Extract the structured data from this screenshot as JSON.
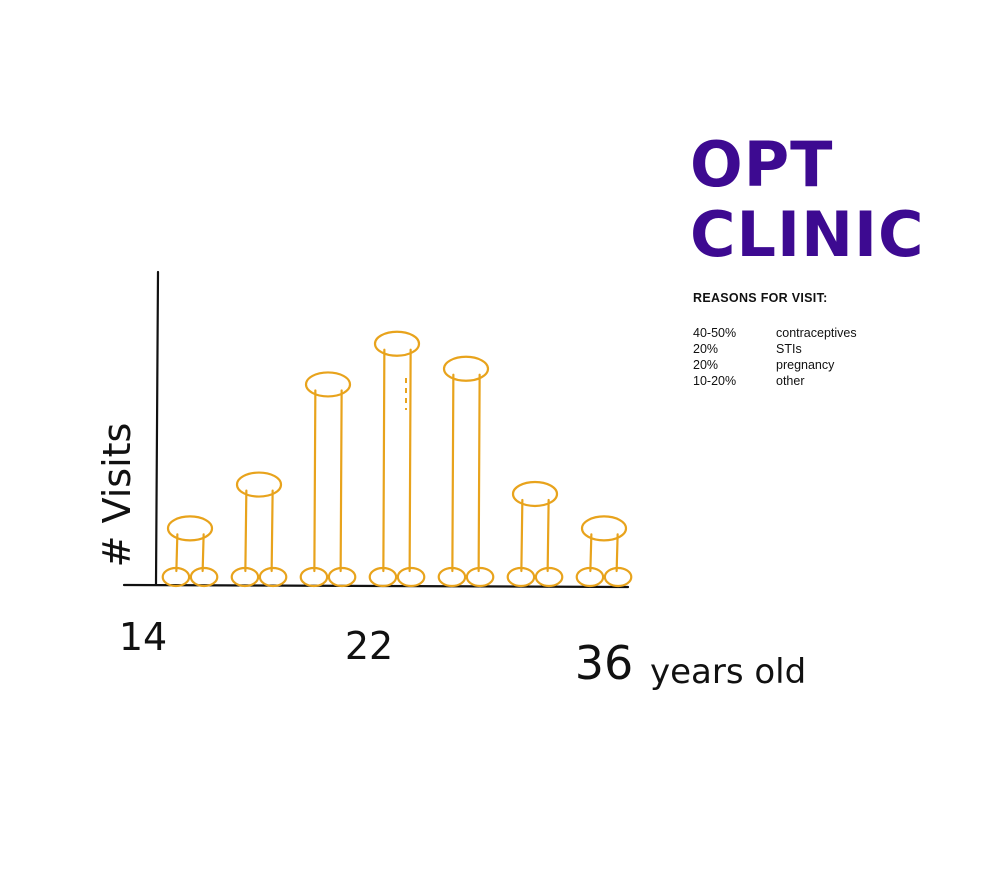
{
  "header": {
    "title_line1": "OPT",
    "title_line2": "CLINIC"
  },
  "reasons": {
    "heading": "REASONS FOR VISIT:",
    "items": [
      {
        "pct": "40-50%",
        "label": "contraceptives"
      },
      {
        "pct": "20%",
        "label": "STIs"
      },
      {
        "pct": "20%",
        "label": "pregnancy"
      },
      {
        "pct": "10-20%",
        "label": "other"
      }
    ]
  },
  "colors": {
    "brand": "#3d0a91",
    "bar_stroke": "#e8a31c",
    "axis": "#111111"
  },
  "chart_data": {
    "type": "bar",
    "ylabel": "# Visits",
    "xlabel": "years old",
    "x_ticks": [
      "14",
      "22",
      "36"
    ],
    "categories": [
      "",
      "",
      "",
      "",
      "",
      "",
      ""
    ],
    "values": [
      20,
      34,
      66,
      79,
      71,
      31,
      20
    ],
    "ylim": [
      0,
      100
    ],
    "grid": false
  }
}
